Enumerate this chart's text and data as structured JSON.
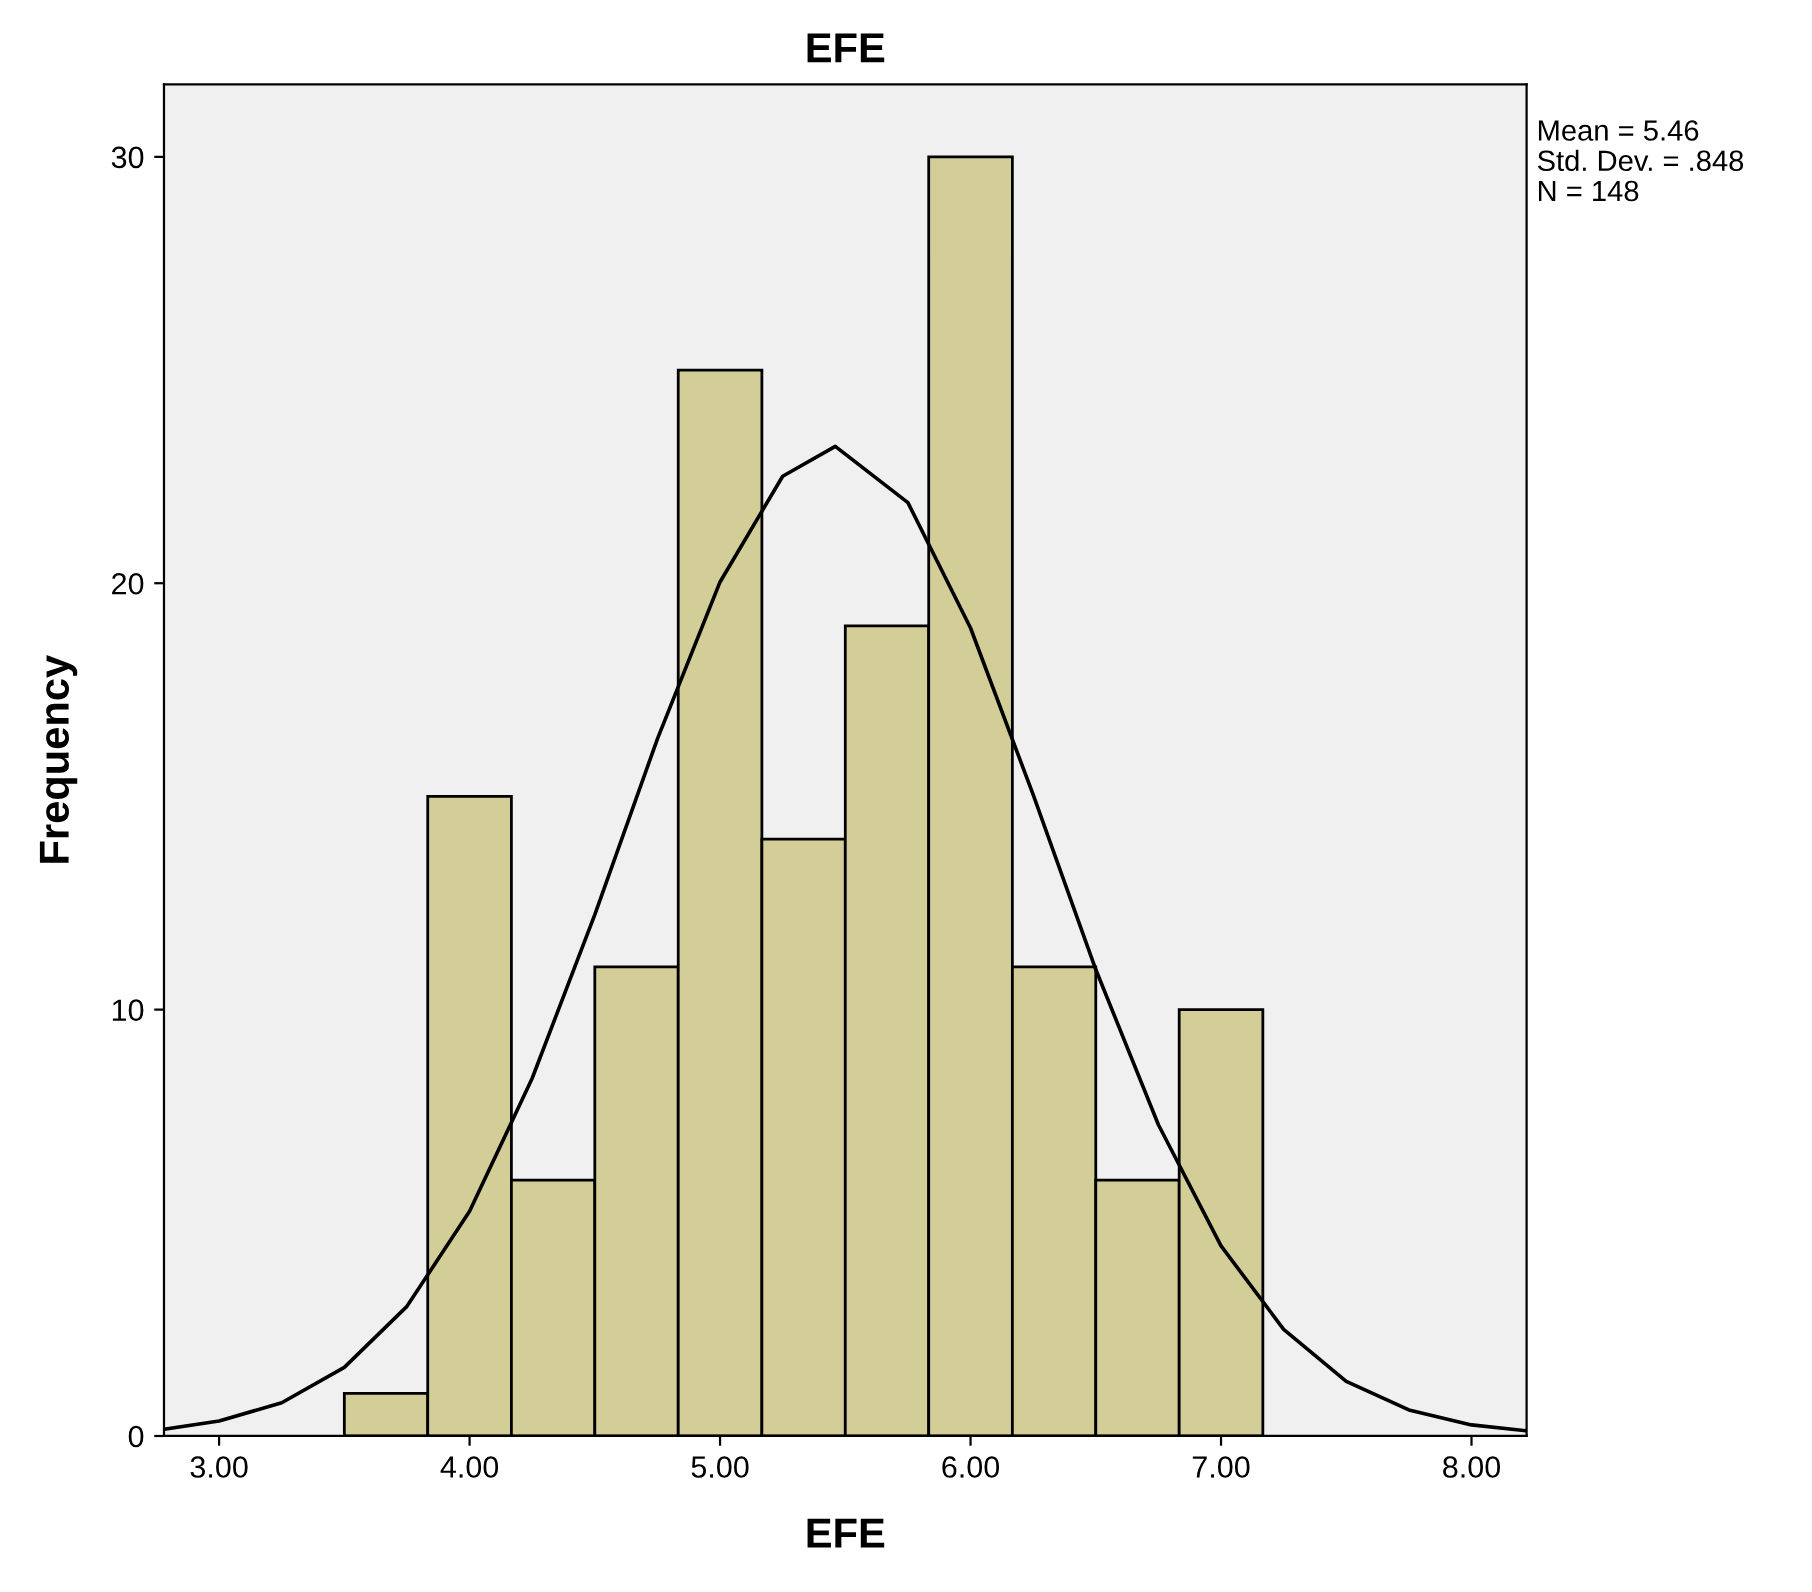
{
  "chart_data": {
    "type": "histogram",
    "title": "EFE",
    "xlabel": "EFE",
    "ylabel": "Frequency",
    "series": [
      {
        "bins": [
          3.5,
          3.833,
          4.167,
          4.5,
          4.833,
          5.167,
          5.5,
          5.833,
          6.167,
          6.5,
          6.833,
          7.167
        ],
        "values": [
          1,
          15,
          6,
          11,
          25,
          14,
          19,
          30,
          11,
          6,
          10
        ],
        "color": "#d3ce97"
      },
      {
        "type": "line",
        "x": [
          2.78,
          3.0,
          3.25,
          3.5,
          3.75,
          4.0,
          4.25,
          4.5,
          4.75,
          5.0,
          5.25,
          5.46,
          5.75,
          6.0,
          6.25,
          6.5,
          6.75,
          7.0,
          7.25,
          7.5,
          7.75,
          8.0,
          8.22
        ],
        "values": [
          0.16,
          0.35,
          0.78,
          1.61,
          3.04,
          5.27,
          8.39,
          12.23,
          16.35,
          20.03,
          22.51,
          23.21,
          21.89,
          18.95,
          15.04,
          10.94,
          7.3,
          4.46,
          2.5,
          1.28,
          0.61,
          0.26,
          0.12
        ],
        "color": "#000000"
      }
    ],
    "xlim": [
      2.78,
      8.22
    ],
    "ylim": [
      0,
      31.7
    ],
    "xticks": [
      {
        "value": 3,
        "label": "3.00"
      },
      {
        "value": 4,
        "label": "4.00"
      },
      {
        "value": 5,
        "label": "5.00"
      },
      {
        "value": 6,
        "label": "6.00"
      },
      {
        "value": 7,
        "label": "7.00"
      },
      {
        "value": 8,
        "label": "8.00"
      }
    ],
    "yticks": [
      0,
      10,
      20,
      30
    ],
    "grid": false,
    "annotations": [
      "Mean = 5.46",
      "Std. Dev. = .848",
      "N = 148"
    ]
  }
}
